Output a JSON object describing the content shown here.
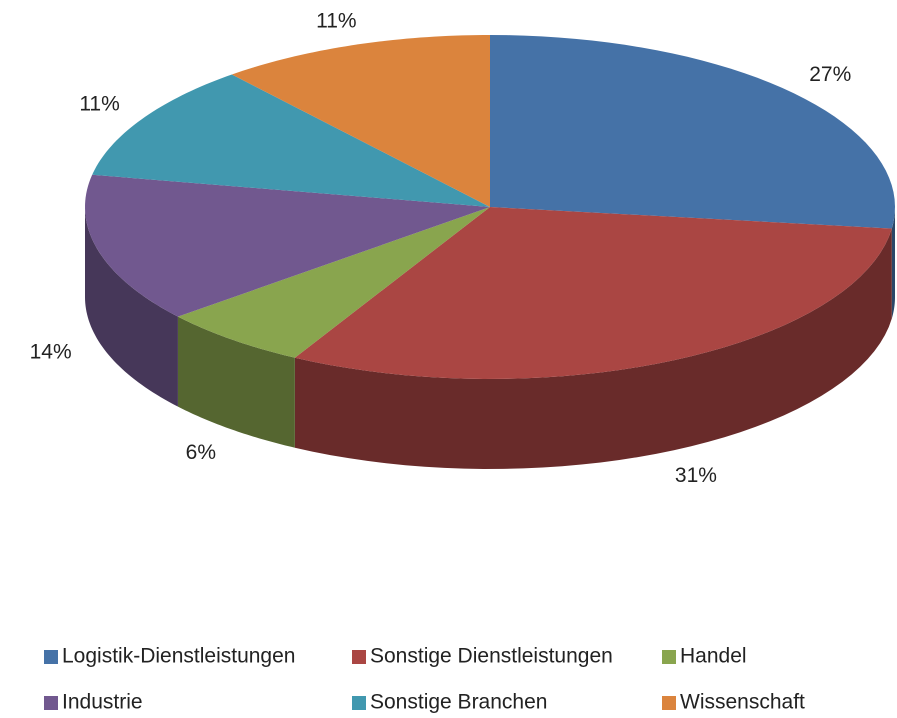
{
  "chart_data": {
    "type": "pie3d",
    "categories": [
      "Logistik-Dienstleistungen",
      "Sonstige Dienstleistungen",
      "Handel",
      "Industrie",
      "Sonstige Branchen",
      "Wissenschaft"
    ],
    "values": [
      27,
      31,
      6,
      14,
      11,
      11
    ],
    "value_labels": [
      "27%",
      "31%",
      "6%",
      "14%",
      "11%",
      "11%"
    ],
    "colors": [
      "#4572a7",
      "#aa4643",
      "#89a54e",
      "#71588f",
      "#4198af",
      "#db843d"
    ],
    "legend": "bottom"
  }
}
